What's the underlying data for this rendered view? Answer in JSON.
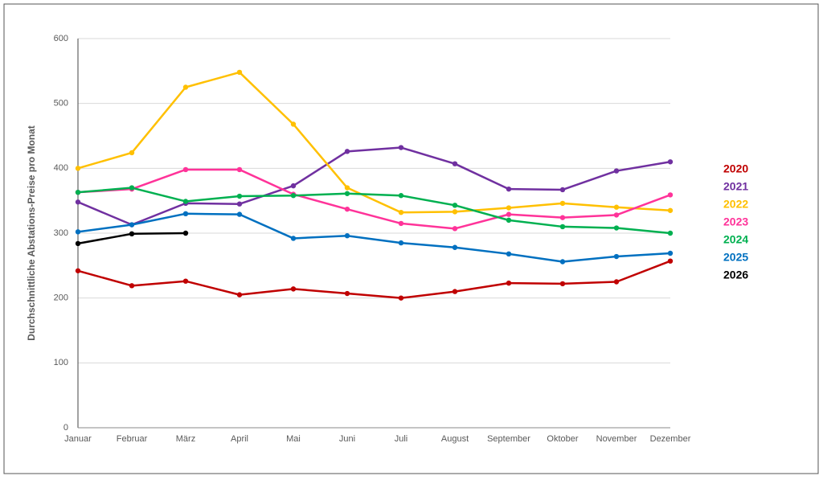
{
  "chart_data": {
    "type": "line",
    "y_label": "Durchschnittliche Abstations-Preise pro Monat",
    "categories": [
      "Januar",
      "Februar",
      "März",
      "April",
      "Mai",
      "Juni",
      "Juli",
      "August",
      "September",
      "Oktober",
      "November",
      "Dezember"
    ],
    "series": [
      {
        "name": "2020",
        "color": "#c00000",
        "values": [
          242,
          219,
          226,
          205,
          214,
          207,
          200,
          210,
          223,
          222,
          225,
          257
        ]
      },
      {
        "name": "2021",
        "color": "#7030a0",
        "values": [
          348,
          313,
          346,
          345,
          373,
          426,
          432,
          407,
          368,
          367,
          396,
          410
        ]
      },
      {
        "name": "2022",
        "color": "#ffc000",
        "values": [
          400,
          424,
          525,
          548,
          468,
          370,
          332,
          333,
          339,
          346,
          340,
          335
        ]
      },
      {
        "name": "2023",
        "color": "#ff3399",
        "values": [
          363,
          368,
          398,
          398,
          360,
          337,
          315,
          307,
          329,
          324,
          328,
          359
        ]
      },
      {
        "name": "2024",
        "color": "#00b050",
        "values": [
          363,
          370,
          349,
          357,
          358,
          361,
          358,
          343,
          320,
          310,
          308,
          300
        ]
      },
      {
        "name": "2025",
        "color": "#0070c0",
        "values": [
          302,
          313,
          330,
          329,
          292,
          296,
          285,
          278,
          268,
          256,
          264,
          269
        ]
      },
      {
        "name": "2026",
        "color": "#000000",
        "values": [
          284,
          299,
          300,
          null,
          null,
          null,
          null,
          null,
          null,
          null,
          null,
          null
        ]
      }
    ],
    "ylim": [
      0,
      600
    ],
    "yticks": [
      0,
      100,
      200,
      300,
      400,
      500,
      600
    ],
    "grid": true
  }
}
